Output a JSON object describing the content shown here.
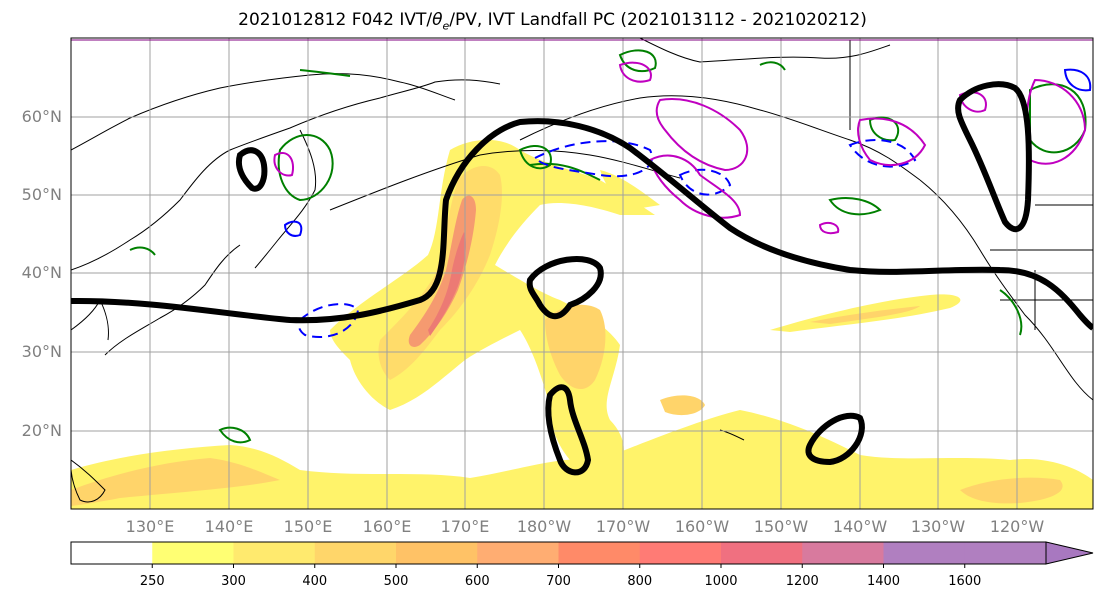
{
  "title_prefix": "2021012812 F042 IVT/",
  "title_theta": "θ",
  "title_sub": "e",
  "title_suffix": "/PV, IVT Landfall PC (2021013112 - 2021020212)",
  "lat_labels": [
    "60°N",
    "50°N",
    "40°N",
    "30°N",
    "20°N"
  ],
  "lon_labels": [
    "130°E",
    "140°E",
    "150°E",
    "160°E",
    "170°E",
    "180°W",
    "170°W",
    "160°W",
    "150°W",
    "140°W",
    "130°W",
    "120°W"
  ],
  "colorbar": {
    "ticks": [
      "250",
      "300",
      "400",
      "500",
      "600",
      "700",
      "800",
      "1000",
      "1200",
      "1400",
      "1600"
    ],
    "colors": [
      "#ffffff",
      "#ffff73",
      "#ffea6e",
      "#ffd66a",
      "#ffc266",
      "#ffad72",
      "#ff8a68",
      "#ff7b75",
      "#f07080",
      "#d87a9e",
      "#b07fc0",
      "#a878c0"
    ]
  },
  "colors": {
    "ivt_low": "#fff36a",
    "ivt_mid": "#ffc266",
    "ivt_high": "#f07070",
    "landfall_pc": "#000000",
    "green_contour": "#008000",
    "blue_contour": "#0000ff",
    "magenta_contour": "#c000c0",
    "coast": "#000000",
    "grid": "#a0a0a0"
  }
}
